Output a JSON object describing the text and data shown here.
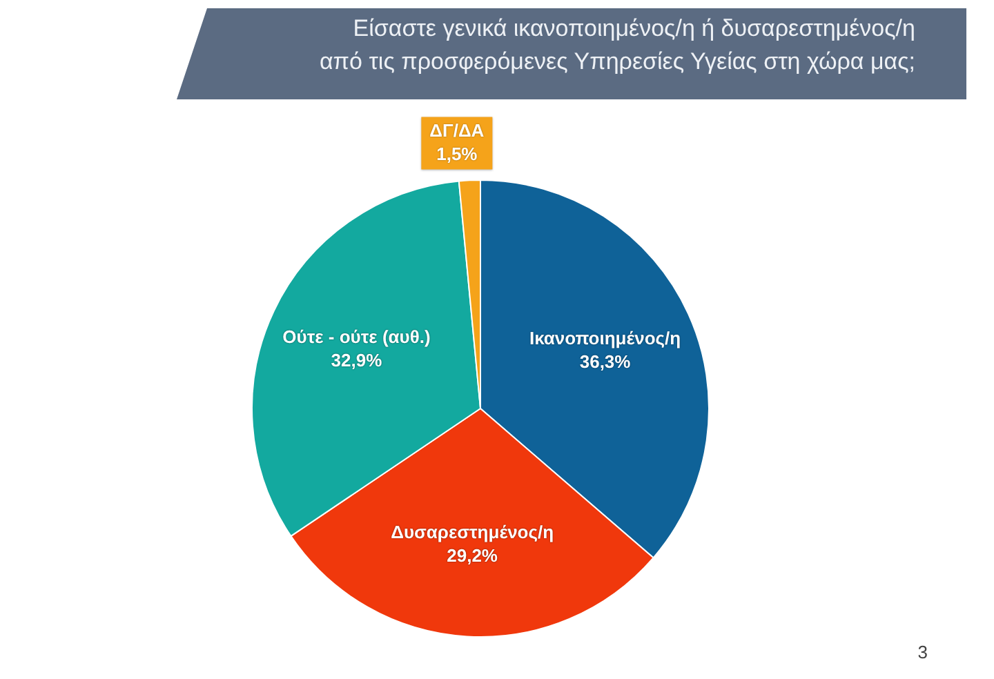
{
  "chart_data": {
    "type": "pie",
    "title": "Είσαστε γενικά ικανοποιημένος/η ή δυσαρεστημένος/η από τις προσφερόμενες Υπηρεσίες Υγείας στη χώρα μας;",
    "categories": [
      "Ικανοποιημένος/η",
      "Δυσαρεστημένος/η",
      "Ούτε - ούτε (αυθ.)",
      "ΔΓ/ΔΑ"
    ],
    "values": [
      36.3,
      29.2,
      32.9,
      1.5
    ],
    "colors": [
      "#0f6298",
      "#f0380c",
      "#13a99f",
      "#f5a31a"
    ],
    "value_labels": [
      "36,3%",
      "29,2%",
      "32,9%",
      "1,5%"
    ],
    "legend": false,
    "annotations": [
      "3"
    ]
  }
}
